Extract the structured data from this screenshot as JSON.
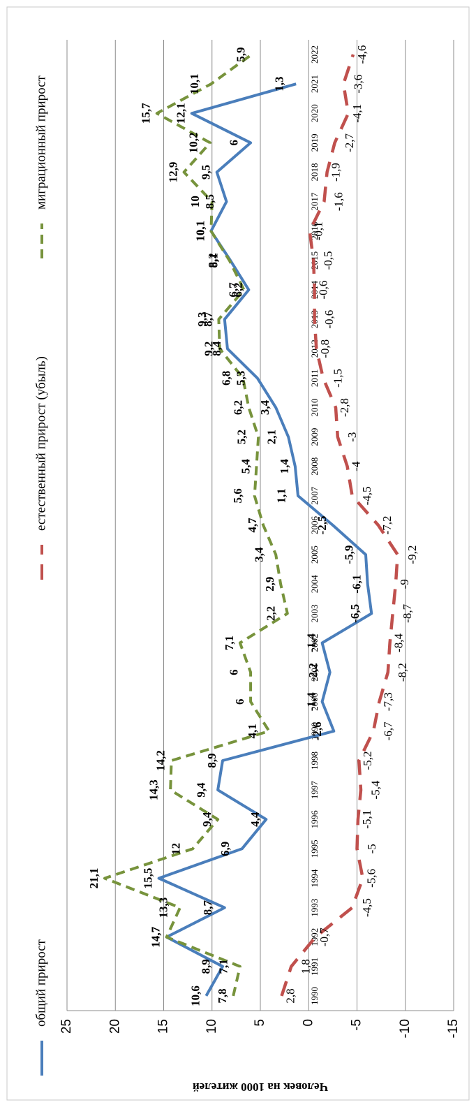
{
  "chart_data": {
    "type": "line",
    "ylabel": "Человек на 1000 жителей",
    "ylim": [
      -15,
      25
    ],
    "yticks": [
      25,
      20,
      15,
      10,
      5,
      0,
      -5,
      -10,
      -15
    ],
    "grid": true,
    "orientation": "rotated-90",
    "legend_position": "right",
    "x": [
      1990,
      1991,
      1992,
      1993,
      1994,
      1995,
      1996,
      1997,
      1998,
      1999,
      2000,
      2001,
      2002,
      2003,
      2004,
      2005,
      2006,
      2007,
      2008,
      2009,
      2010,
      2011,
      2012,
      2013,
      2014,
      2015,
      2016,
      2017,
      2018,
      2019,
      2020,
      2021,
      2022
    ],
    "series": [
      {
        "name": "общий прирост",
        "color": "#4a7ebb",
        "dash": "solid",
        "values": [
          10.6,
          8.9,
          14.7,
          8.7,
          15.5,
          6.9,
          4.4,
          9.4,
          8.9,
          -2.6,
          -1.4,
          -2.2,
          -1.4,
          -6.5,
          -6.1,
          -5.9,
          -2.5,
          1.1,
          1.4,
          2.1,
          3.4,
          5.3,
          8.4,
          8.7,
          6.2,
          8.1,
          10.1,
          8.5,
          9.5,
          6,
          12.1,
          1.3,
          null
        ],
        "labels": [
          "10,6",
          "8,9",
          "14,7",
          "8,7",
          "15,5",
          "6,9",
          "4,4",
          "9,4",
          "8,9",
          "-2,6",
          "-1,4",
          "-2,2",
          "-1,4",
          "-6,5",
          "-6,1",
          "-5,9",
          "-2,5",
          "1,1",
          "1,4",
          "2,1",
          "3,4",
          "5,3",
          "8,4",
          "8,7",
          "6,2",
          "8,1",
          "10,1",
          "8,5",
          "9,5",
          "6",
          "12,1",
          "1,3",
          ""
        ]
      },
      {
        "name": "естественный прирост (убыль)",
        "color": "#c0504d",
        "dash": "long-dash",
        "values": [
          2.8,
          1.8,
          -0.7,
          -4.5,
          -5.6,
          -5,
          -5.1,
          -5.4,
          -5.2,
          -6.7,
          -7.3,
          -8.2,
          -8.4,
          -8.7,
          -9,
          -9.2,
          -7.2,
          -4.5,
          -4,
          -3,
          -2.8,
          -1.5,
          -0.8,
          -0.6,
          -0.6,
          -0.5,
          -0.1,
          -1.6,
          -1.9,
          -2.7,
          -4.1,
          -3.6,
          -4.6
        ],
        "labels": [
          "2,8",
          "1,8",
          "-0,7",
          "-4,5",
          "-5,6",
          "-5",
          "-5,1",
          "-5,4",
          "-5,2",
          "-6,7",
          "-7,3",
          "-8,2",
          "-8,4",
          "-8,7",
          "-9",
          "-9,2",
          "-7,2",
          "-4,5",
          "-4",
          "-3",
          "-2,8",
          "-1,5",
          "-0,8",
          "-0,6",
          "-0,6",
          "-0,5",
          "-0,1",
          "-1,6",
          "-1,9",
          "-2,7",
          "-4,1",
          "-3,6",
          "-4,6"
        ]
      },
      {
        "name": "миграционный прирост",
        "color": "#77933c",
        "dash": "short-dash",
        "values": [
          7.8,
          7.1,
          14.7,
          13.3,
          21.1,
          12,
          9.4,
          14.3,
          14.2,
          4.1,
          6,
          6,
          7.1,
          2.2,
          2.9,
          3.4,
          4.7,
          5.6,
          5.4,
          5.2,
          6.2,
          6.8,
          9.2,
          9.3,
          6.7,
          8.2,
          10.1,
          10,
          12.9,
          10.2,
          15.7,
          10.1,
          5.9
        ],
        "labels": [
          "7,8",
          "7,1",
          "14,7",
          "13,3",
          "21,1",
          "12",
          "9,4",
          "14,3",
          "14,2",
          "4,1",
          "6",
          "6",
          "7,1",
          "2,2",
          "2,9",
          "3,4",
          "4,7",
          "5,6",
          "5,4",
          "5,2",
          "6,2",
          "6,8",
          "9,2",
          "9,3",
          "6,7",
          "8,2",
          "10,1",
          "10",
          "12,9",
          "10,2",
          "15,7",
          "10,1",
          "5,9"
        ]
      }
    ]
  }
}
